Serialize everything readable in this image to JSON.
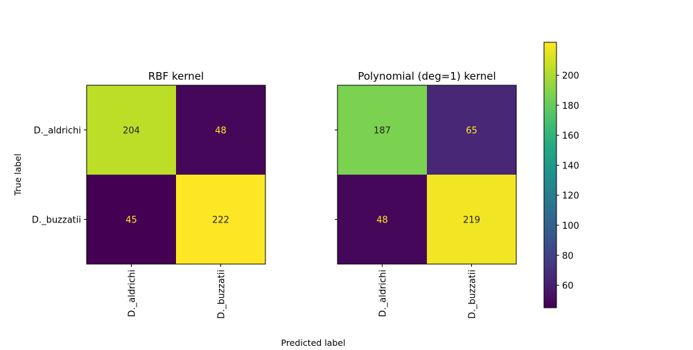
{
  "chart_data": {
    "type": "heatmap",
    "xlabel": "Predicted label",
    "ylabel": "True label",
    "class_labels": [
      "D._aldrichi",
      "D._buzzatii"
    ],
    "colorscale": "viridis",
    "color_range": [
      45,
      222
    ],
    "colorbar_ticks": [
      60,
      80,
      100,
      120,
      140,
      160,
      180,
      200
    ],
    "panels": [
      {
        "title": "RBF kernel",
        "matrix": [
          [
            204,
            48
          ],
          [
            45,
            222
          ]
        ]
      },
      {
        "title": "Polynomial (deg=1) kernel",
        "matrix": [
          [
            187,
            65
          ],
          [
            48,
            219
          ]
        ]
      }
    ]
  }
}
